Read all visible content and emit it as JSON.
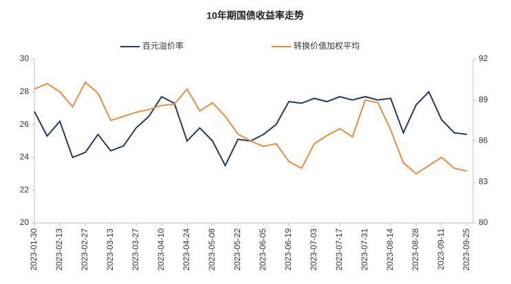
{
  "chart_data": {
    "type": "line",
    "title": "10年期国债收益率走势",
    "categories": [
      "2023-01-30",
      null,
      "2023-02-13",
      null,
      "2023-02-27",
      null,
      "2023-03-13",
      null,
      "2023-03-27",
      null,
      "2023-04-10",
      null,
      "2023-04-24",
      null,
      "2023-05-08",
      null,
      "2023-05-22",
      null,
      "2023-06-05",
      null,
      "2023-06-19",
      null,
      "2023-07-03",
      null,
      "2023-07-17",
      null,
      "2023-07-31",
      null,
      "2023-08-14",
      null,
      "2023-08-28",
      null,
      "2023-09-11",
      null,
      "2023-09-25"
    ],
    "series": [
      {
        "name": "百元溢价率",
        "color": "#1f3864",
        "values": [
          26.8,
          25.3,
          26.2,
          24.0,
          24.3,
          25.4,
          24.4,
          24.7,
          25.8,
          26.5,
          27.7,
          27.3,
          25.0,
          25.8,
          25.0,
          23.5,
          25.1,
          25.0,
          25.4,
          26.0,
          27.4,
          27.3,
          27.6,
          27.4,
          27.7,
          27.5,
          27.7,
          27.5,
          27.6,
          25.5,
          27.2,
          28.0,
          26.3,
          25.5,
          25.4
        ]
      },
      {
        "name": "转换价值加权平均",
        "color": "#ed8b3a",
        "axis": "y2",
        "values": [
          89.8,
          90.2,
          89.6,
          88.5,
          90.3,
          89.5,
          87.5,
          87.8,
          88.1,
          88.3,
          88.6,
          88.7,
          89.8,
          88.2,
          88.8,
          87.8,
          86.5,
          86.0,
          85.6,
          85.8,
          84.5,
          84.0,
          85.8,
          86.4,
          86.9,
          86.3,
          89.0,
          88.8,
          86.8,
          84.4,
          83.6,
          84.2,
          84.8,
          84.0,
          83.8
        ]
      }
    ],
    "ylim": [
      20,
      30
    ],
    "yticks": [
      20,
      22,
      24,
      26,
      28,
      30
    ],
    "y2lim": [
      80,
      92
    ],
    "y2ticks": [
      80,
      83,
      86,
      89,
      92
    ],
    "grid": false
  }
}
